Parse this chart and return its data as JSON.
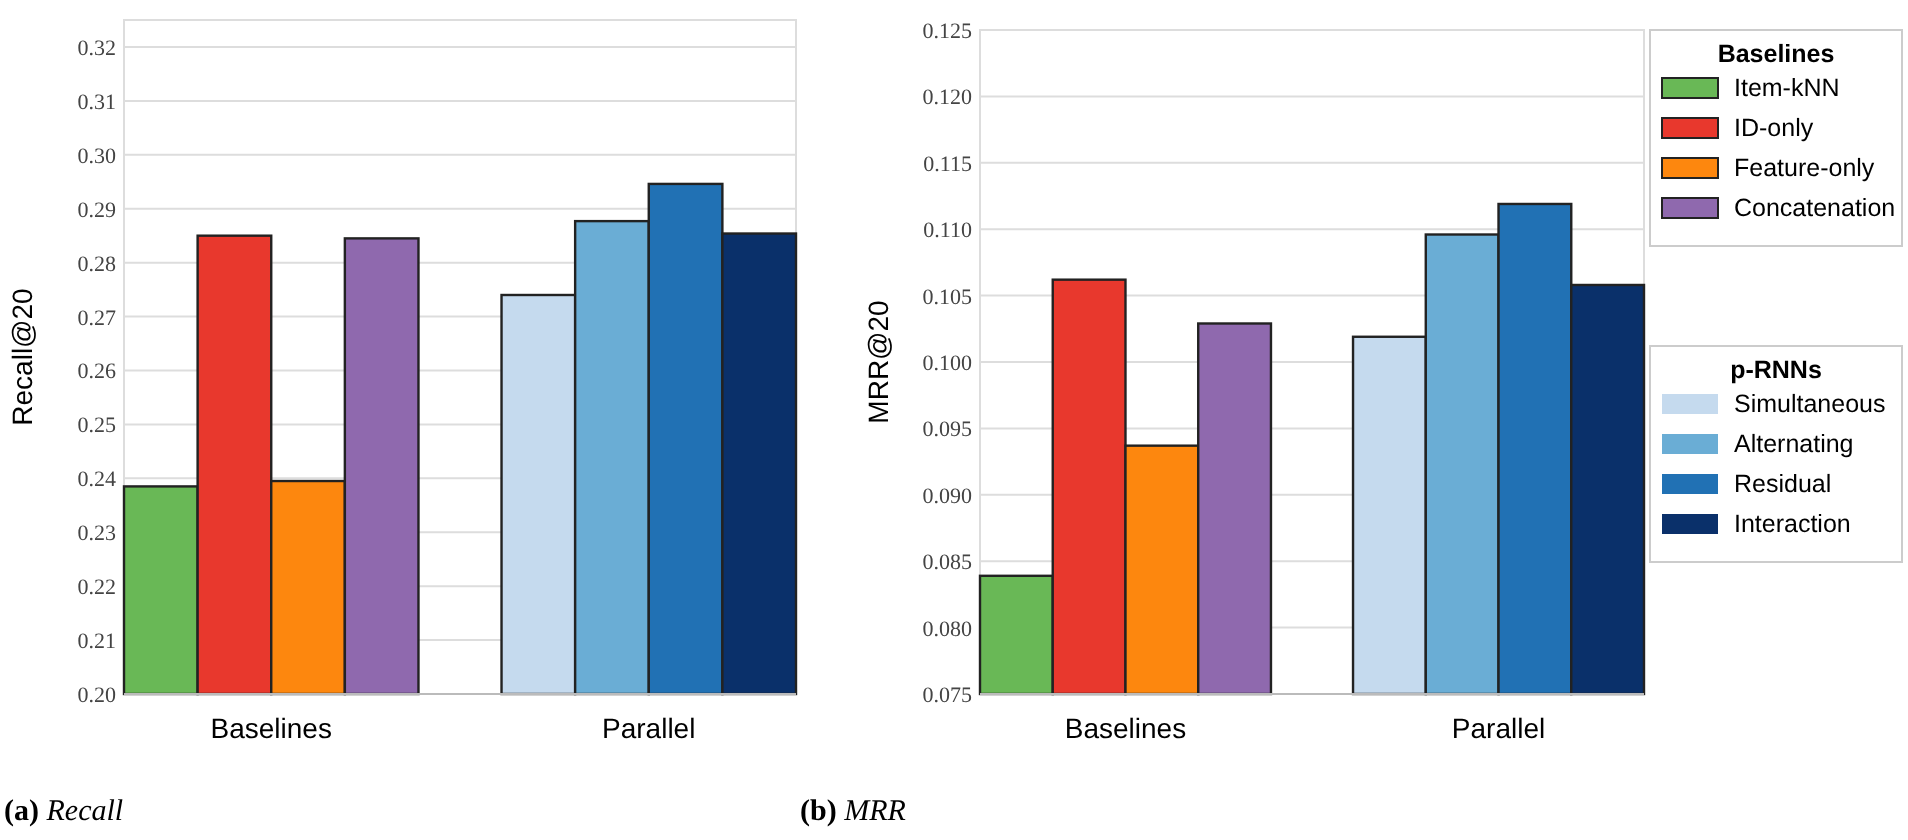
{
  "chart_data": [
    {
      "type": "bar",
      "title": "(a) Recall",
      "ylabel": "Recall@20",
      "categories": [
        "Baselines",
        "Parallel"
      ],
      "ylim": [
        0.2,
        0.325
      ],
      "yticks": [
        {
          "value": 0.2,
          "label": "0.20"
        },
        0.21,
        0.22,
        0.23,
        0.24,
        0.25,
        0.26,
        0.27,
        0.28,
        0.29,
        {
          "value": 0.3,
          "label": "0.30"
        },
        0.31,
        0.32
      ],
      "grid": "y",
      "legend": false,
      "series": [
        {
          "color": "#69b856",
          "values": [
            0.2385,
            null
          ]
        },
        {
          "color": "#e8382d",
          "values": [
            0.285,
            null
          ]
        },
        {
          "color": "#fd870e",
          "values": [
            0.2395,
            null
          ]
        },
        {
          "color": "#8f69ae",
          "values": [
            0.2845,
            null
          ]
        },
        {
          "color": "#c5daee",
          "values": [
            null,
            0.274
          ]
        },
        {
          "color": "#6aadd5",
          "values": [
            null,
            0.2877
          ]
        },
        {
          "color": "#2171b4",
          "values": [
            null,
            0.2946
          ]
        },
        {
          "color": "#0a306a",
          "values": [
            null,
            0.2854
          ]
        }
      ]
    },
    {
      "type": "bar",
      "title": "(b) MRR",
      "ylabel": "MRR@20",
      "categories": [
        "Baselines",
        "Parallel"
      ],
      "ylim": [
        0.075,
        0.125
      ],
      "yticks": [
        0.075,
        {
          "value": 0.08,
          "label": "0.080"
        },
        0.085,
        {
          "value": 0.09,
          "label": "0.090"
        },
        0.095,
        {
          "value": 0.1,
          "label": "0.100"
        },
        0.105,
        {
          "value": 0.11,
          "label": "0.110"
        },
        0.115,
        {
          "value": 0.12,
          "label": "0.120"
        },
        0.125
      ],
      "grid": "y",
      "legend": "right",
      "legend_title": "Baselines",
      "annotations": [
        "p-RNNs"
      ],
      "series": [
        {
          "name": "Item-kNN",
          "color": "#69b856",
          "values": [
            0.0839,
            null
          ]
        },
        {
          "name": "ID-only",
          "color": "#e8382d",
          "values": [
            0.1062,
            null
          ]
        },
        {
          "name": "Feature-only",
          "color": "#fd870e",
          "values": [
            0.0937,
            null
          ]
        },
        {
          "name": "Concatenation",
          "color": "#8f69ae",
          "values": [
            0.1029,
            null
          ]
        },
        {
          "name": "Simultaneous",
          "color": "#c5daee",
          "values": [
            null,
            0.1019
          ]
        },
        {
          "name": "Alternating",
          "color": "#6aadd5",
          "values": [
            null,
            0.1096
          ]
        },
        {
          "name": "Residual",
          "color": "#2171b4",
          "values": [
            null,
            0.1119
          ]
        },
        {
          "name": "Interaction",
          "color": "#0a306a",
          "values": [
            null,
            0.1058
          ]
        }
      ]
    }
  ]
}
